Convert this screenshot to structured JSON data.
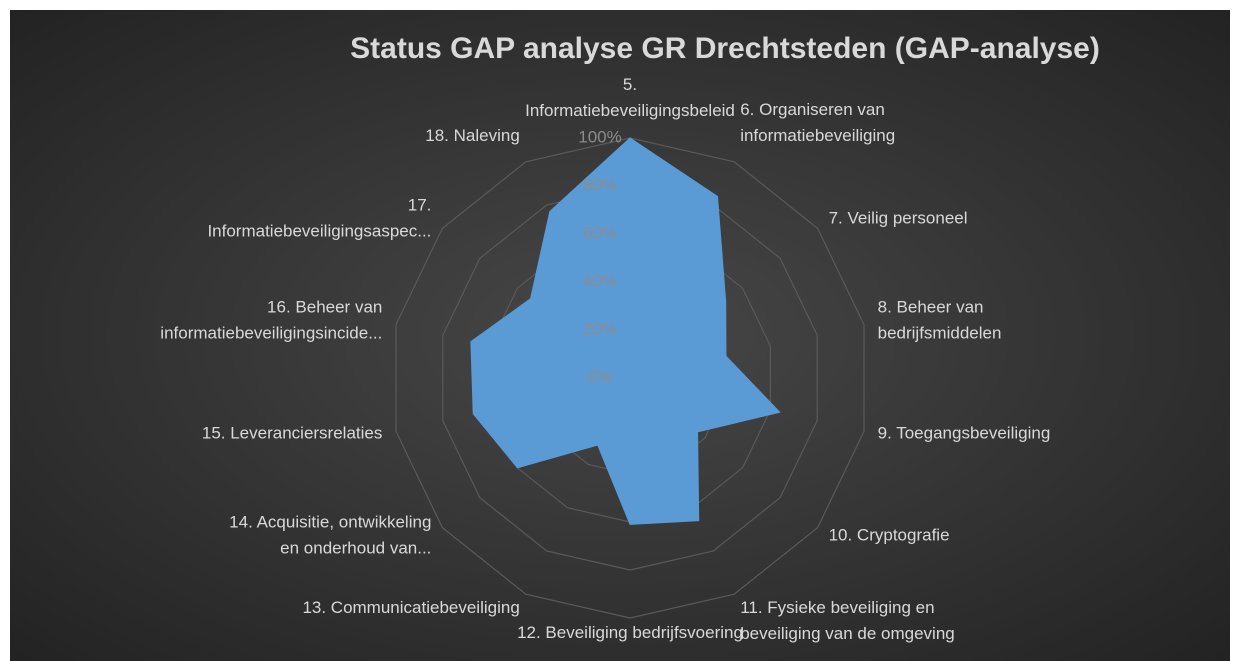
{
  "chart_data": {
    "type": "radar",
    "title": "Status GAP analyse GR Drechtsteden (GAP-analyse)",
    "categories": [
      "5.\nInformatiebeveiligingsbeleid",
      "6. Organiseren van\ninformatiebeveiliging",
      "7. Veilig personeel",
      "8. Beheer van\nbedrijfsmiddelen",
      "9. Toegangsbeveiliging",
      "10. Cryptografie",
      "11. Fysieke beveiliging en\nbeveiliging van de omgeving",
      "12. Beveiliging bedrijfsvoering",
      "13. Communicatiebeveiliging",
      "14. Acquisitie, ontwikkeling\nen onderhoud van...",
      "15. Leveranciersrelaties",
      "16. Beheer van\ninformatiebeveiligingsincide...",
      "17.\nInformatiebeveiligingsaspec...",
      "18. Naleving"
    ],
    "values": [
      100,
      84,
      51,
      41,
      64,
      36,
      66,
      61,
      31,
      60,
      67,
      68,
      53,
      77
    ],
    "color": "#5b9bd5",
    "ylim": [
      0,
      100
    ],
    "yticks": [
      {
        "value": 0,
        "label": "0%"
      },
      {
        "value": 20,
        "label": "20%"
      },
      {
        "value": 40,
        "label": "40%"
      },
      {
        "value": 60,
        "label": "60%"
      },
      {
        "value": 80,
        "label": "80%"
      },
      {
        "value": 100,
        "label": "100%"
      }
    ],
    "grid": true
  }
}
